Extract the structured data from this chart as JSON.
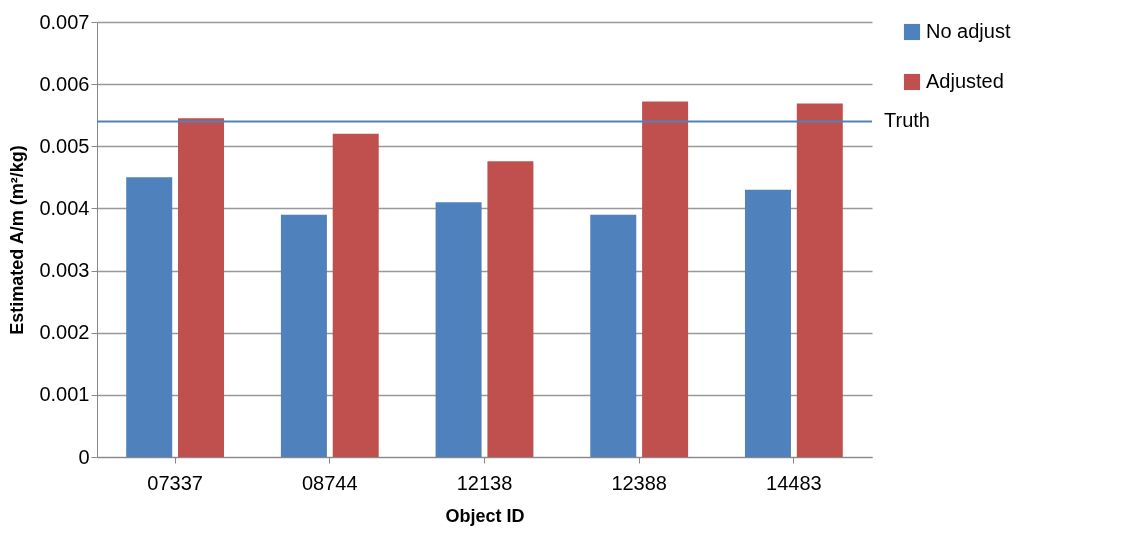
{
  "chart_data": {
    "type": "bar",
    "xlabel": "Object ID",
    "ylabel": "Estimated A/m  (m²/kg)",
    "categories": [
      "07337",
      "08744",
      "12138",
      "12388",
      "14483"
    ],
    "series": [
      {
        "name": "No adjust",
        "color": "#4f81bd",
        "values": [
          0.0045,
          0.0039,
          0.0041,
          0.0039,
          0.0043
        ]
      },
      {
        "name": "Adjusted",
        "color": "#c0504d",
        "values": [
          0.00545,
          0.0052,
          0.00476,
          0.00572,
          0.00569
        ]
      }
    ],
    "ylim": [
      0,
      0.007
    ],
    "yticks": [
      0,
      0.001,
      0.002,
      0.003,
      0.004,
      0.005,
      0.006,
      0.007
    ],
    "ref_lines": [
      {
        "axis": "y",
        "value": 0.0054,
        "label": "Truth",
        "color": "#4f81bd"
      }
    ],
    "grid": "y",
    "legend": "right"
  }
}
